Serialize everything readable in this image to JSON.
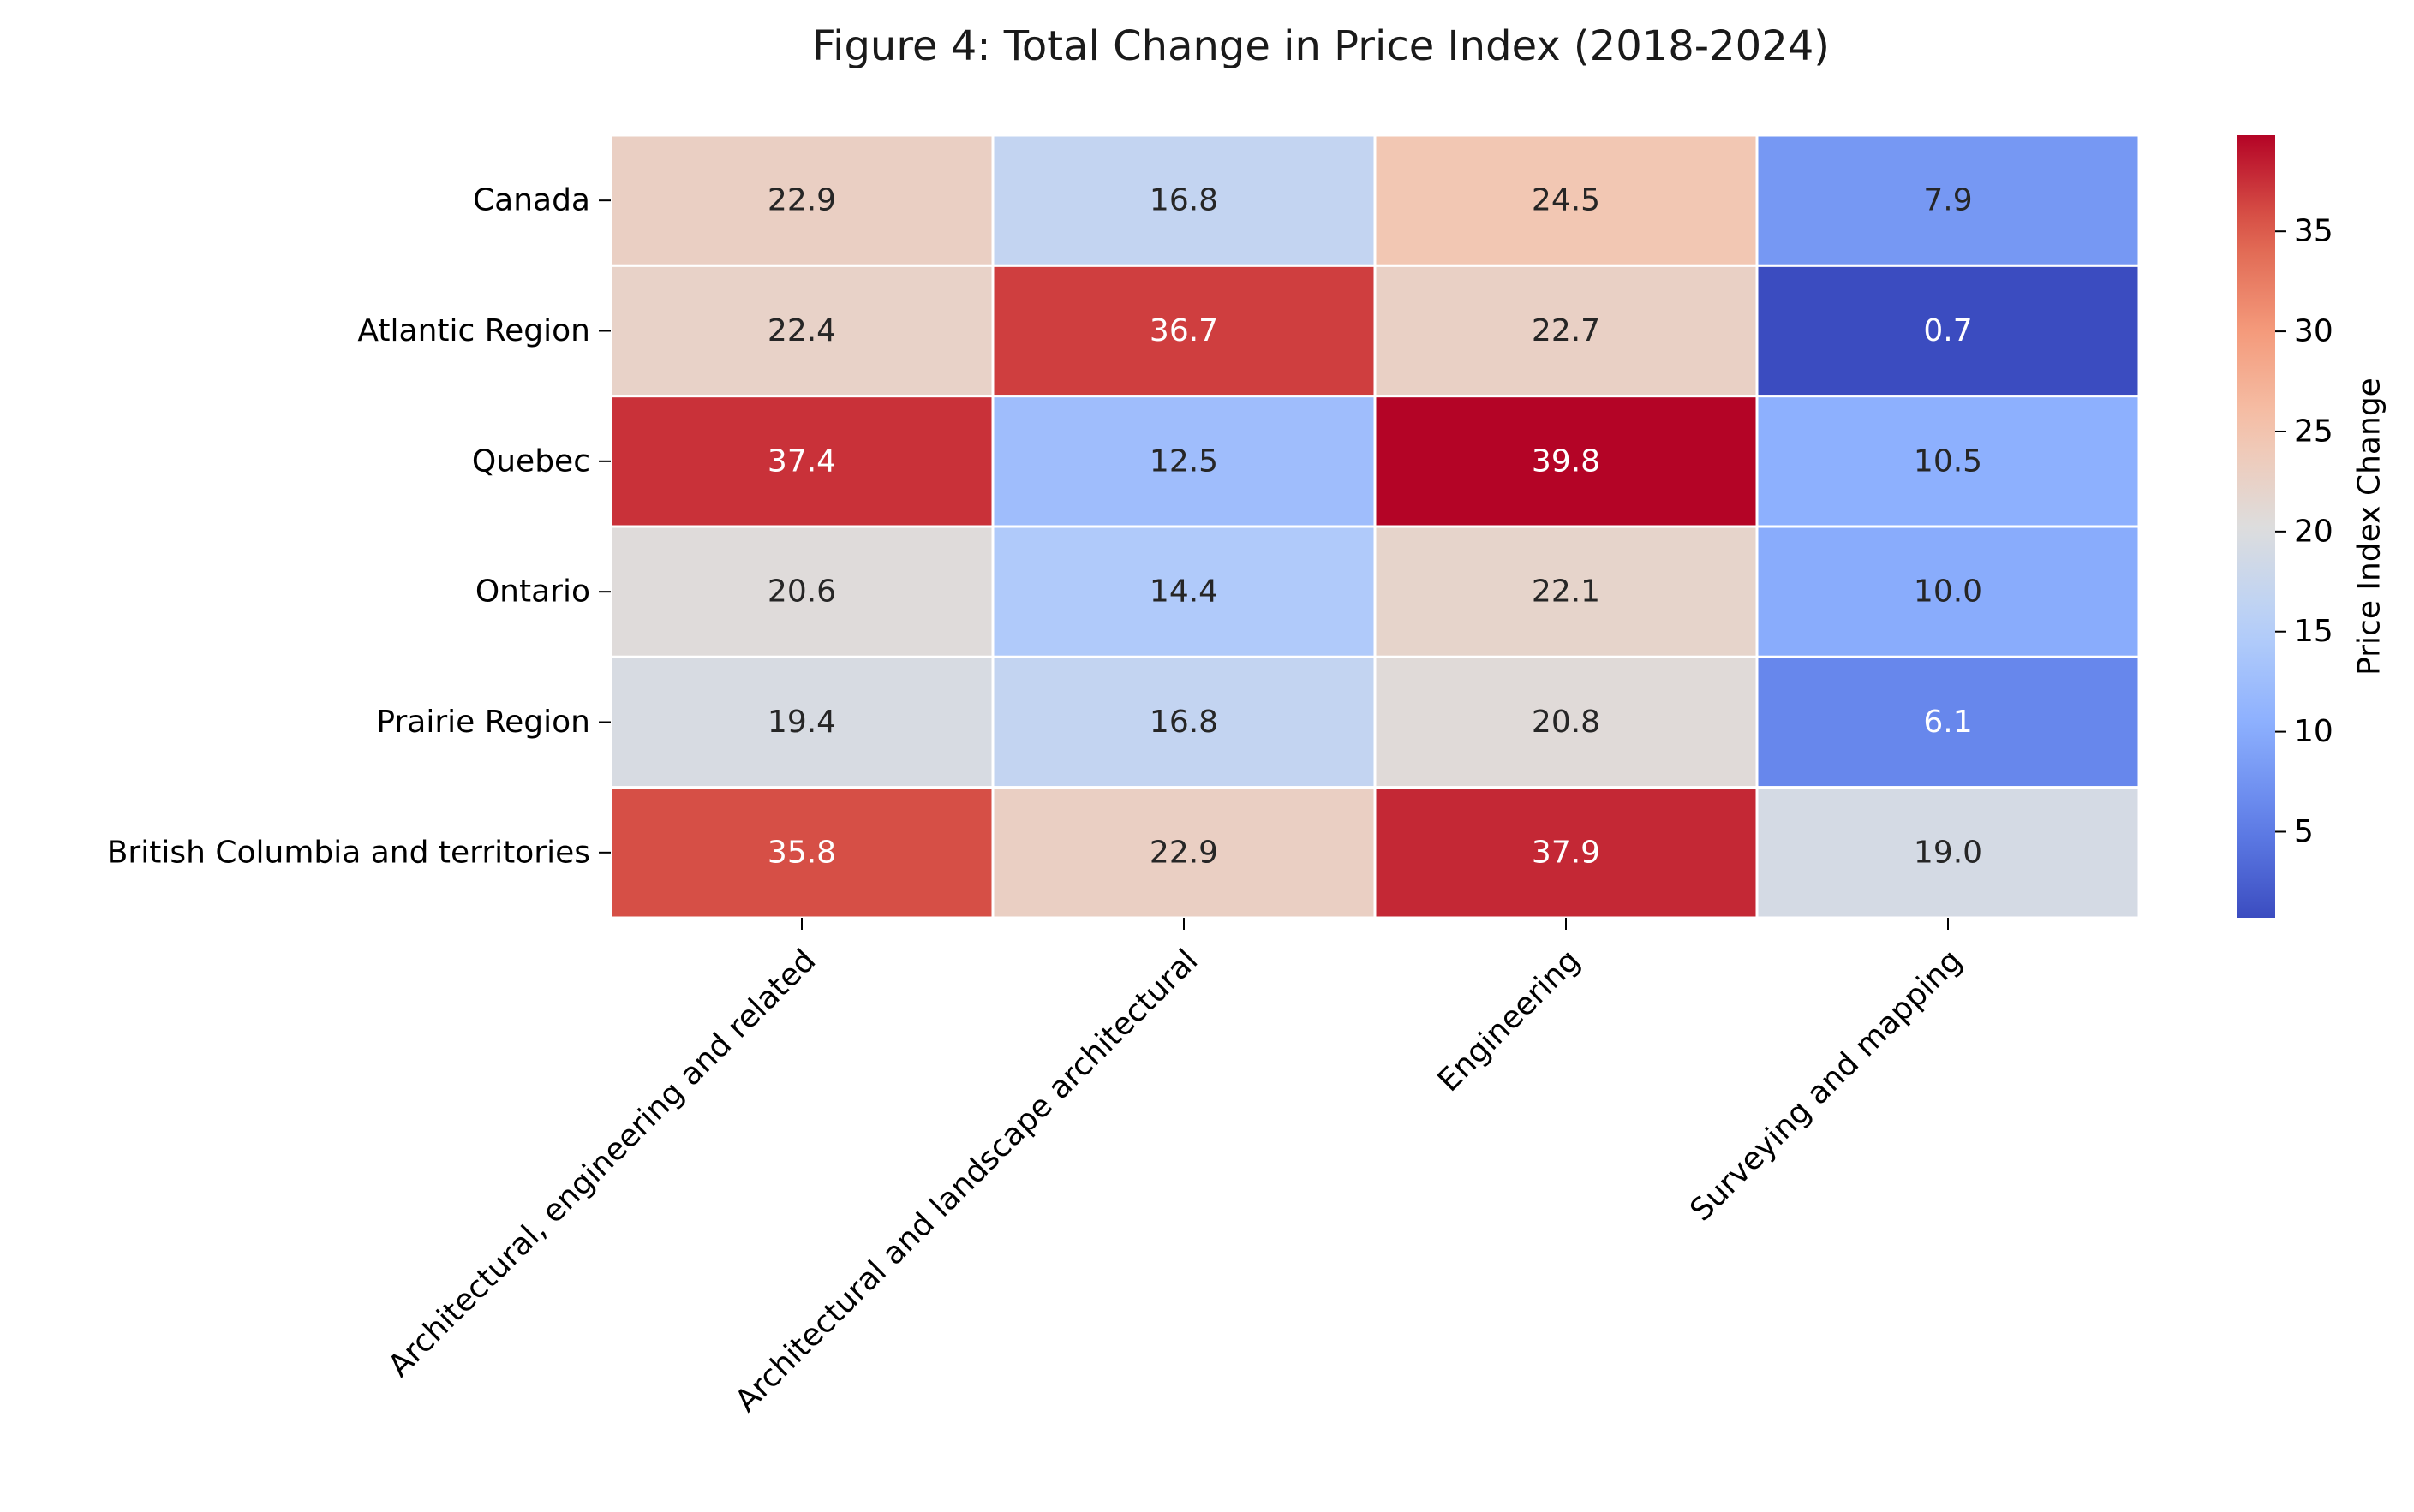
{
  "chart_data": {
    "type": "heatmap",
    "title": "Figure 4: Total Change in Price Index (2018-2024)",
    "rows": [
      "Canada",
      "Atlantic Region",
      "Quebec",
      "Ontario",
      "Prairie Region",
      "British Columbia and territories"
    ],
    "columns": [
      "Architectural, engineering and related",
      "Architectural and landscape architectural",
      "Engineering",
      "Surveying and mapping"
    ],
    "values": [
      [
        22.9,
        16.8,
        24.5,
        7.9
      ],
      [
        22.4,
        36.7,
        22.7,
        0.7
      ],
      [
        37.4,
        12.5,
        39.8,
        10.5
      ],
      [
        20.6,
        14.4,
        22.1,
        10.0
      ],
      [
        19.4,
        16.8,
        20.8,
        6.1
      ],
      [
        35.8,
        22.9,
        37.9,
        19.0
      ]
    ],
    "colorbar": {
      "label": "Price Index Change",
      "vmin": 0.7,
      "vmax": 39.8,
      "ticks": [
        5,
        10,
        15,
        20,
        25,
        30,
        35
      ],
      "colormap": "coolwarm"
    },
    "annotations": "values printed in cells with one decimal"
  }
}
